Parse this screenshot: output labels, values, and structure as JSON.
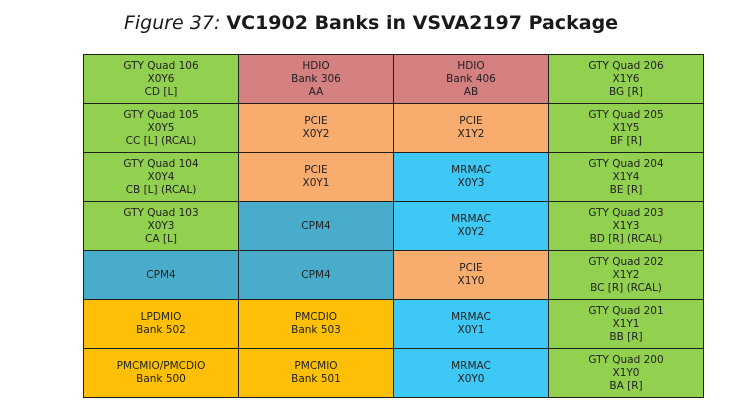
{
  "title": {
    "label": "Figure 37:",
    "name": "VC1902 Banks in VSVA2197 Package"
  },
  "colors": {
    "gty": "#92d050",
    "hdio": "#d47f80",
    "pcie": "#f8ac6e",
    "mrmac": "#3ec8f5",
    "cpm4": "#4aaccb",
    "pmc": "#fdc006"
  },
  "rows": [
    [
      {
        "type": "gty",
        "lines": [
          "GTY Quad 106",
          "X0Y6",
          "CD [L]"
        ]
      },
      {
        "type": "hdio",
        "lines": [
          "HDIO",
          "Bank 306",
          "AA"
        ]
      },
      {
        "type": "hdio",
        "lines": [
          "HDIO",
          "Bank 406",
          "AB"
        ]
      },
      {
        "type": "gty",
        "lines": [
          "GTY Quad 206",
          "X1Y6",
          "BG [R]"
        ]
      }
    ],
    [
      {
        "type": "gty",
        "lines": [
          "GTY Quad 105",
          "X0Y5",
          "CC [L] (RCAL)"
        ]
      },
      {
        "type": "pcie",
        "lines": [
          "PCIE",
          "X0Y2"
        ]
      },
      {
        "type": "pcie",
        "lines": [
          "PCIE",
          "X1Y2"
        ]
      },
      {
        "type": "gty",
        "lines": [
          "GTY Quad 205",
          "X1Y5",
          "BF [R]"
        ]
      }
    ],
    [
      {
        "type": "gty",
        "lines": [
          "GTY Quad 104",
          "X0Y4",
          "CB [L] (RCAL)"
        ]
      },
      {
        "type": "pcie",
        "lines": [
          "PCIE",
          "X0Y1"
        ]
      },
      {
        "type": "mrmac",
        "lines": [
          "MRMAC",
          "X0Y3"
        ]
      },
      {
        "type": "gty",
        "lines": [
          "GTY Quad 204",
          "X1Y4",
          "BE [R]"
        ]
      }
    ],
    [
      {
        "type": "gty",
        "lines": [
          "GTY Quad 103",
          "X0Y3",
          "CA [L]"
        ]
      },
      {
        "type": "cpm4",
        "lines": [
          "CPM4"
        ]
      },
      {
        "type": "mrmac",
        "lines": [
          "MRMAC",
          "X0Y2"
        ]
      },
      {
        "type": "gty",
        "lines": [
          "GTY Quad 203",
          "X1Y3",
          "BD [R] (RCAL)"
        ]
      }
    ],
    [
      {
        "type": "cpm4",
        "lines": [
          "CPM4"
        ]
      },
      {
        "type": "cpm4",
        "lines": [
          "CPM4"
        ]
      },
      {
        "type": "pcie",
        "lines": [
          "PCIE",
          "X1Y0"
        ]
      },
      {
        "type": "gty",
        "lines": [
          "GTY Quad 202",
          "X1Y2",
          "BC [R] (RCAL)"
        ]
      }
    ],
    [
      {
        "type": "pmc",
        "lines": [
          "LPDMIO",
          "Bank 502"
        ]
      },
      {
        "type": "pmc",
        "lines": [
          "PMCDIO",
          "Bank 503"
        ]
      },
      {
        "type": "mrmac",
        "lines": [
          "MRMAC",
          "X0Y1"
        ]
      },
      {
        "type": "gty",
        "lines": [
          "GTY Quad 201",
          "X1Y1",
          "BB [R]"
        ]
      }
    ],
    [
      {
        "type": "pmc",
        "lines": [
          "PMCMIO/PMCDIO",
          "Bank 500"
        ]
      },
      {
        "type": "pmc",
        "lines": [
          "PMCMIO",
          "Bank 501"
        ]
      },
      {
        "type": "mrmac",
        "lines": [
          "MRMAC",
          "X0Y0"
        ]
      },
      {
        "type": "gty",
        "lines": [
          "GTY Quad 200",
          "X1Y0",
          "BA [R]"
        ]
      }
    ]
  ]
}
